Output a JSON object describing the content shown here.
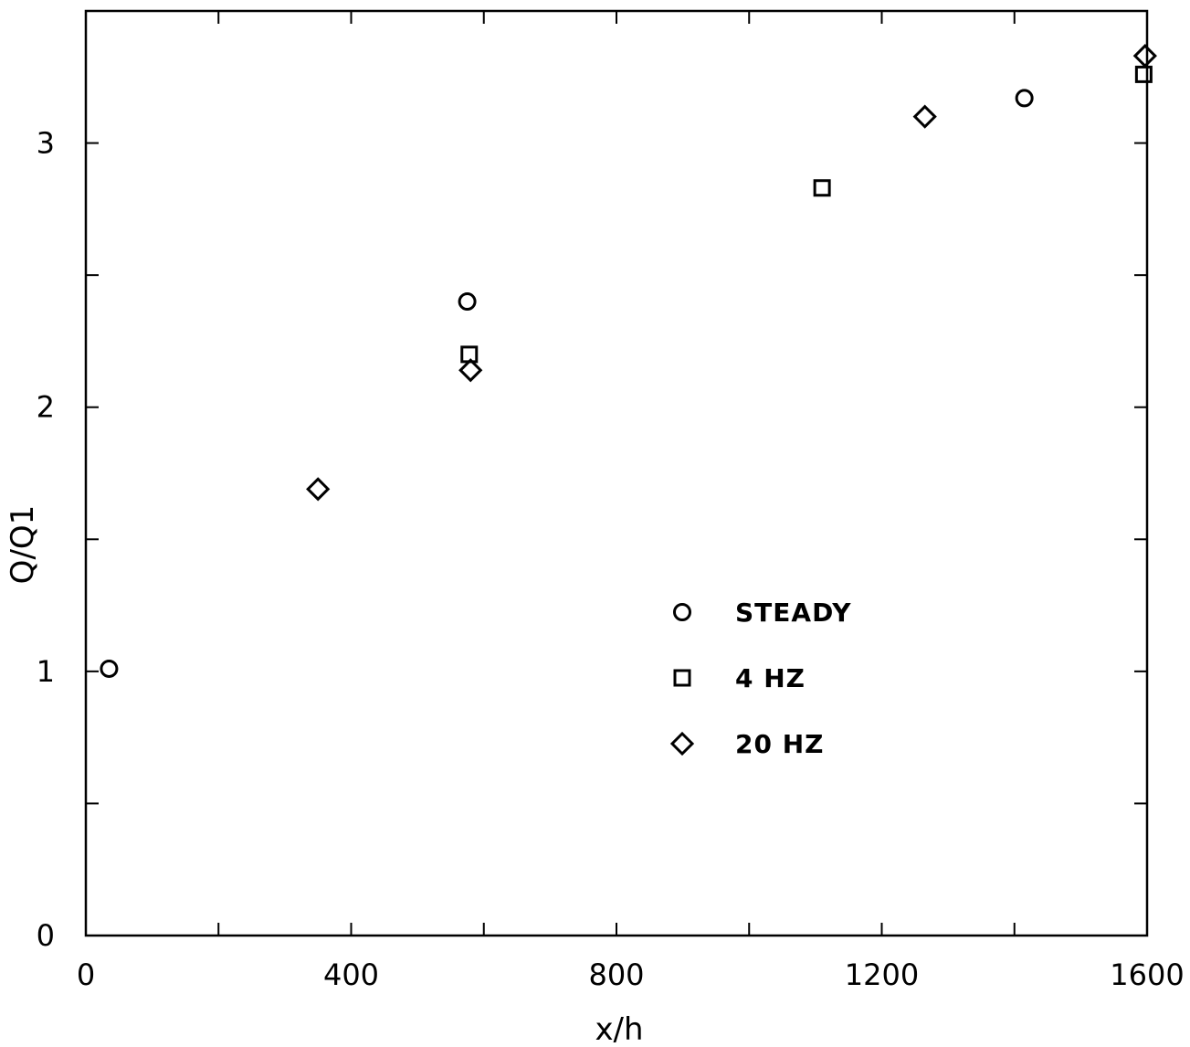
{
  "chart_data": {
    "type": "scatter",
    "xlabel": "x/h",
    "ylabel": "Q/Q1",
    "xlim": [
      0,
      1600
    ],
    "ylim": [
      0,
      3.5
    ],
    "x_ticks": [
      0,
      400,
      800,
      1200,
      1600
    ],
    "y_ticks": [
      0,
      1,
      2,
      3
    ],
    "grid": false,
    "legend_placement": "center-right",
    "series": [
      {
        "name": "STEADY",
        "marker": "circle",
        "points": [
          [
            35,
            1.01
          ],
          [
            575,
            2.4
          ],
          [
            1415,
            3.17
          ]
        ]
      },
      {
        "name": "4 HZ",
        "marker": "square",
        "points": [
          [
            578,
            2.2
          ],
          [
            1110,
            2.83
          ],
          [
            1595,
            3.26
          ]
        ]
      },
      {
        "name": "20 HZ",
        "marker": "diamond",
        "points": [
          [
            350,
            1.69
          ],
          [
            580,
            2.14
          ],
          [
            1265,
            3.1
          ],
          [
            1597,
            3.33
          ]
        ]
      }
    ]
  }
}
